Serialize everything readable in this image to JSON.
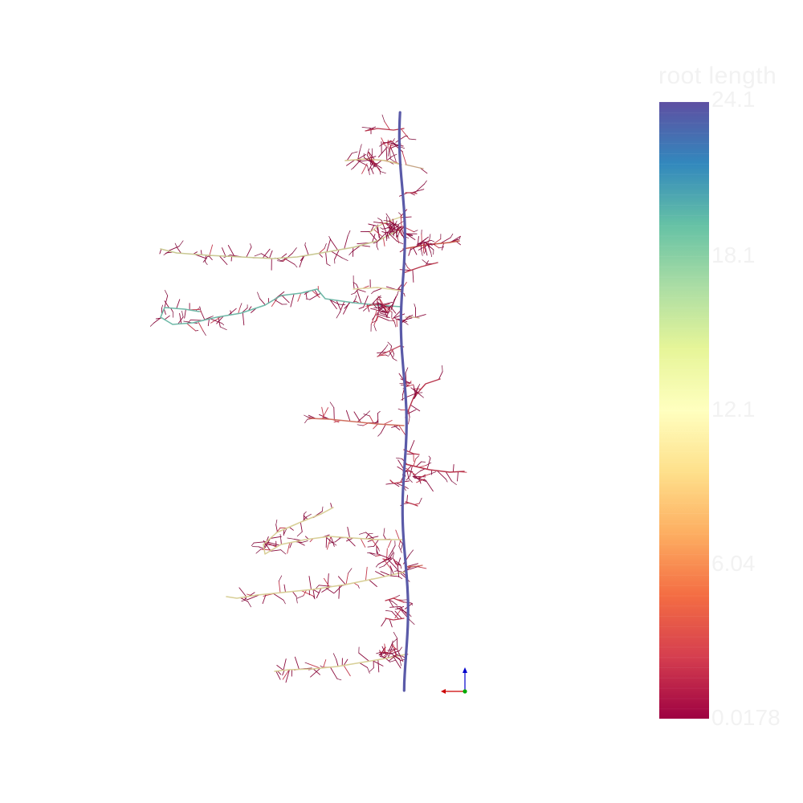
{
  "viewer": {
    "background": "#ffffff"
  },
  "scalar_bar": {
    "title": "root length",
    "tick_labels": [
      "24.1",
      "18.1",
      "12.1",
      "6.04",
      "0.0178"
    ],
    "range": [
      0.0178,
      24.1
    ],
    "colormap": "Spectral",
    "colors": [
      "#9e0142",
      "#d53e4f",
      "#f46d43",
      "#fdae61",
      "#fee08b",
      "#ffffbf",
      "#e6f598",
      "#abdda4",
      "#66c2a5",
      "#3288bd",
      "#5e4fa2"
    ],
    "label_color": "#f2f2f2"
  },
  "orientation_axes": {
    "x_color": "#cc0000",
    "y_color": "#00aa00",
    "z_color": "#0000cc"
  }
}
